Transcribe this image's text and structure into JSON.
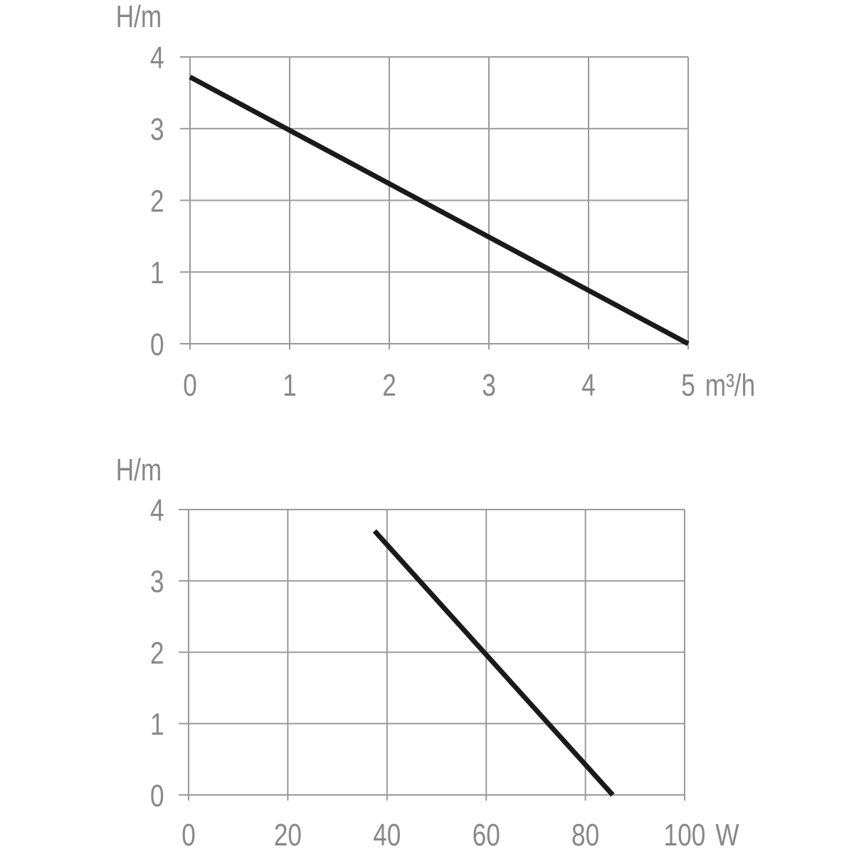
{
  "colors": {
    "grid": "#9a9a9a",
    "text": "#888888",
    "line": "#1a1a1a"
  },
  "chart_data": [
    {
      "type": "line",
      "ylabel": "H/m",
      "xlabel": "m³/h",
      "xlim": [
        0,
        5
      ],
      "ylim": [
        0,
        4
      ],
      "x_ticks": [
        0,
        1,
        2,
        3,
        4,
        5
      ],
      "y_ticks": [
        0,
        1,
        2,
        3,
        4
      ],
      "x_tick_labels": [
        "0",
        "1",
        "2",
        "3",
        "4",
        "5"
      ],
      "y_tick_labels": [
        "0",
        "1",
        "2",
        "3",
        "4"
      ],
      "grid": true,
      "series": [
        {
          "x": [
            0,
            5
          ],
          "y": [
            3.72,
            0
          ]
        }
      ]
    },
    {
      "type": "line",
      "ylabel": "H/m",
      "xlabel": "W",
      "xlim": [
        0,
        100
      ],
      "ylim": [
        0,
        4
      ],
      "x_ticks": [
        0,
        20,
        40,
        60,
        80,
        100
      ],
      "y_ticks": [
        0,
        1,
        2,
        3,
        4
      ],
      "x_tick_labels": [
        "0",
        "20",
        "40",
        "60",
        "80",
        "100"
      ],
      "y_tick_labels": [
        "0",
        "1",
        "2",
        "3",
        "4"
      ],
      "grid": true,
      "series": [
        {
          "x": [
            37.5,
            85.5
          ],
          "y": [
            3.7,
            0
          ]
        }
      ]
    }
  ]
}
